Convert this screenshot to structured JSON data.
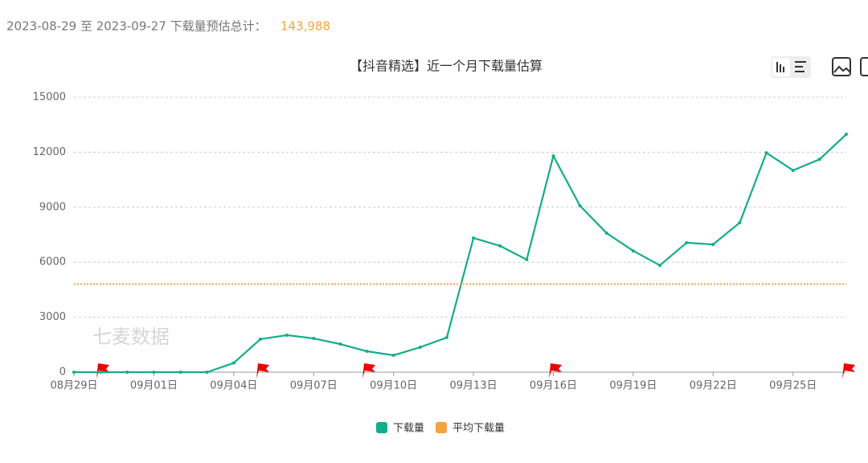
{
  "header": {
    "label": "2023-08-29 至 2023-09-27 下载量预估总计：",
    "total": "143,988"
  },
  "watermark": "七麦数据",
  "chart_data": {
    "type": "line",
    "title": "【抖音精选】近一个月下载量估算",
    "categories": [
      "08月29日",
      null,
      null,
      "09月01日",
      null,
      null,
      "09月04日",
      null,
      null,
      "09月07日",
      null,
      null,
      "09月10日",
      null,
      null,
      "09月13日",
      null,
      null,
      "09月16日",
      null,
      null,
      "09月19日",
      null,
      null,
      "09月22日",
      null,
      null,
      "09月25日",
      null,
      null
    ],
    "series": [
      {
        "name": "下载量",
        "color": "#13ad8a",
        "values": [
          0,
          0,
          0,
          0,
          0,
          0,
          500,
          1800,
          2020,
          1840,
          1535,
          1140,
          920,
          1360,
          1890,
          7320,
          6890,
          6140,
          11800,
          9080,
          7590,
          6620,
          5830,
          7060,
          6970,
          8160,
          11970,
          11010,
          11620,
          12980
        ]
      },
      {
        "name": "平均下载量",
        "color": "#f5a43a",
        "value": 4800
      }
    ],
    "ylim": [
      0,
      15000
    ],
    "yticks": [
      0,
      3000,
      6000,
      9000,
      12000,
      15000
    ],
    "grid": true
  }
}
